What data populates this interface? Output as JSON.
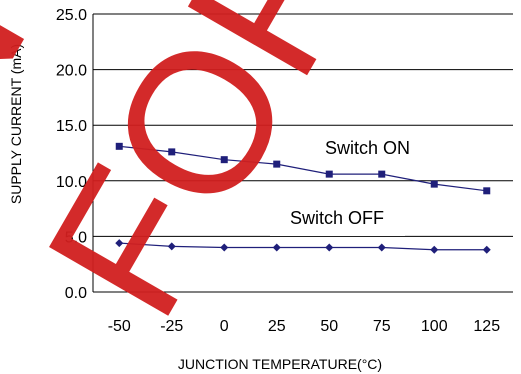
{
  "watermark": [
    "NO",
    "FOR"
  ],
  "chart_data": {
    "type": "line",
    "title": "",
    "xlabel": "JUNCTION TEMPERATURE(°C)",
    "ylabel": "SUPPLY CURRENT (mA)",
    "x": [
      -50,
      -25,
      0,
      25,
      50,
      75,
      100,
      125
    ],
    "x_tick_labels": [
      "-50",
      "-25",
      "0",
      "25",
      "50",
      "75",
      "100",
      "125"
    ],
    "y_tick_labels": [
      "0.0",
      "5.0",
      "10.0",
      "15.0",
      "20.0",
      "25.0"
    ],
    "ylim": [
      0,
      25
    ],
    "grid": "horizontal",
    "series": [
      {
        "name": "Switch ON",
        "values": [
          13.1,
          12.6,
          11.9,
          11.5,
          10.6,
          10.6,
          9.7,
          9.1
        ],
        "marker": "square",
        "color": "#1f1f7a"
      },
      {
        "name": "Switch OFF",
        "values": [
          4.4,
          4.1,
          4.0,
          4.0,
          4.0,
          4.0,
          3.8,
          3.8
        ],
        "marker": "diamond",
        "color": "#1f1f7a"
      }
    ]
  }
}
